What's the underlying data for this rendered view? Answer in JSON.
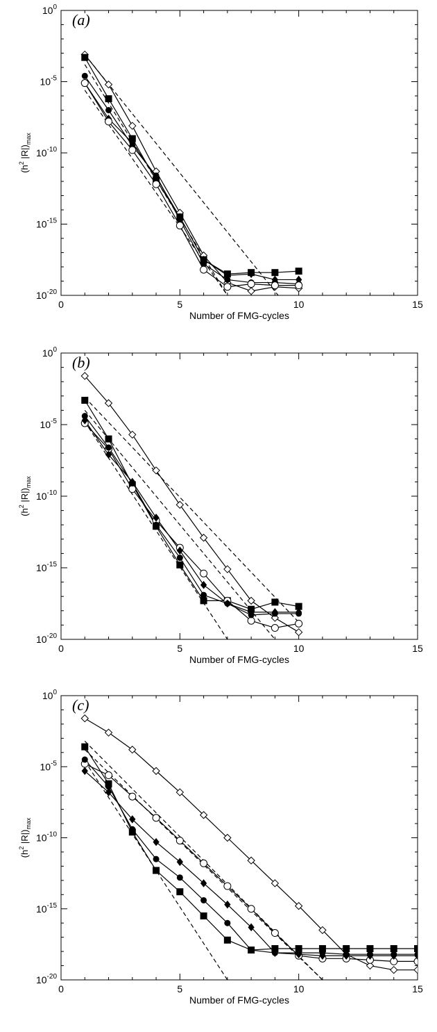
{
  "chart_data": [
    {
      "type": "line",
      "panel_label": "(a)",
      "xlabel": "Number of FMG-cycles",
      "ylabel": {
        "base": "(h",
        "sup": "2",
        "mid": " |R|)",
        "sub": "max"
      },
      "xlim": [
        0,
        15
      ],
      "ylim_exp": [
        -20,
        0
      ],
      "log_y": true,
      "x_ticks": [
        "0",
        "5",
        "10",
        "15"
      ],
      "y_ticks": [
        {
          "base": "10",
          "exp": "0"
        },
        {
          "base": "10",
          "exp": "-5"
        },
        {
          "base": "10",
          "exp": "-10"
        },
        {
          "base": "10",
          "exp": "-15"
        },
        {
          "base": "10",
          "exp": "-20"
        }
      ],
      "series": [
        {
          "marker": "open-diamond",
          "x": [
            1,
            2,
            3,
            4,
            5,
            6,
            7,
            8,
            9,
            10
          ],
          "log10_y": [
            -3.1,
            -5.2,
            -8.1,
            -11.3,
            -14.2,
            -17.2,
            -19.1,
            -19.7,
            -19.4,
            -19.5
          ]
        },
        {
          "marker": "filled-square",
          "x": [
            1,
            2,
            3,
            4,
            5,
            6,
            7,
            8,
            9,
            10
          ],
          "log10_y": [
            -3.3,
            -6.2,
            -9.0,
            -11.9,
            -14.5,
            -17.5,
            -18.5,
            -18.4,
            -18.4,
            -18.3
          ]
        },
        {
          "marker": "filled-diamond",
          "x": [
            1,
            2,
            3,
            4,
            5,
            6,
            7,
            8,
            9,
            10
          ],
          "log10_y": [
            -5.1,
            -7.6,
            -9.3,
            -11.7,
            -14.5,
            -17.5,
            -18.6,
            -18.5,
            -18.9,
            -18.9
          ]
        },
        {
          "marker": "filled-circle",
          "x": [
            1,
            2,
            3,
            4,
            5,
            6,
            7,
            8,
            9,
            10
          ],
          "log10_y": [
            -4.6,
            -7.0,
            -9.5,
            -11.6,
            -14.7,
            -17.8,
            -18.9,
            -19.1,
            -19.1,
            -19.2
          ]
        },
        {
          "marker": "open-circle",
          "x": [
            1,
            2,
            3,
            4,
            5,
            6,
            7,
            8,
            9,
            10
          ],
          "log10_y": [
            -5.1,
            -7.8,
            -9.8,
            -12.2,
            -15.1,
            -18.2,
            -19.4,
            -19.2,
            -19.3,
            -19.3
          ]
        }
      ],
      "reference_lines": [
        {
          "style": "dashed",
          "x": [
            1,
            10
          ],
          "log10_y": [
            -3.1,
            -21.8
          ]
        },
        {
          "style": "dashed",
          "x": [
            1,
            7
          ],
          "log10_y": [
            -3.8,
            -20
          ]
        },
        {
          "style": "dashed",
          "x": [
            1,
            7
          ],
          "log10_y": [
            -5.6,
            -20
          ]
        }
      ]
    },
    {
      "type": "line",
      "panel_label": "(b)",
      "xlabel": "Number of FMG-cycles",
      "ylabel": {
        "base": "(h",
        "sup": "2",
        "mid": " |R|)",
        "sub": "max"
      },
      "xlim": [
        0,
        15
      ],
      "ylim_exp": [
        -20,
        0
      ],
      "log_y": true,
      "x_ticks": [
        "0",
        "5",
        "10",
        "15"
      ],
      "y_ticks": [
        {
          "base": "10",
          "exp": "0"
        },
        {
          "base": "10",
          "exp": "-5"
        },
        {
          "base": "10",
          "exp": "-10"
        },
        {
          "base": "10",
          "exp": "-15"
        },
        {
          "base": "10",
          "exp": "-20"
        }
      ],
      "series": [
        {
          "marker": "open-diamond",
          "x": [
            1,
            2,
            3,
            4,
            5,
            6,
            7,
            8,
            9,
            10
          ],
          "log10_y": [
            -1.6,
            -3.5,
            -5.7,
            -8.2,
            -10.6,
            -12.9,
            -15.1,
            -17.3,
            -18.5,
            -19.5
          ]
        },
        {
          "marker": "filled-square",
          "x": [
            1,
            2,
            3,
            4,
            5,
            6,
            7,
            8,
            9,
            10
          ],
          "log10_y": [
            -3.3,
            -6.0,
            -9.2,
            -12.1,
            -14.8,
            -17.3,
            -17.3,
            -17.9,
            -17.4,
            -17.7
          ]
        },
        {
          "marker": "open-circle",
          "x": [
            1,
            2,
            3,
            4,
            5,
            6,
            7,
            8,
            9,
            10
          ],
          "log10_y": [
            -4.9,
            -6.7,
            -9.5,
            -11.7,
            -13.6,
            -15.4,
            -17.3,
            -18.7,
            -19.2,
            -18.9
          ]
        },
        {
          "marker": "filled-diamond",
          "x": [
            1,
            2,
            3,
            4,
            5,
            6,
            7,
            8,
            9,
            10
          ],
          "log10_y": [
            -4.7,
            -7.1,
            -9.0,
            -11.5,
            -13.8,
            -16.2,
            -17.5,
            -18.1,
            -18.1,
            -18.1
          ]
        },
        {
          "marker": "filled-circle",
          "x": [
            1,
            2,
            3,
            4,
            5,
            6,
            7,
            8,
            9,
            10
          ],
          "log10_y": [
            -4.4,
            -6.6,
            -9.1,
            -12.0,
            -14.3,
            -16.9,
            -17.5,
            -18.3,
            -18.2,
            -18.2
          ]
        }
      ],
      "reference_lines": [
        {
          "style": "dashed",
          "x": [
            1,
            10
          ],
          "log10_y": [
            -3.1,
            -18.8
          ]
        },
        {
          "style": "dashed",
          "x": [
            1,
            10
          ],
          "log10_y": [
            -4.0,
            -22.0
          ]
        },
        {
          "style": "dashed",
          "x": [
            1,
            7
          ],
          "log10_y": [
            -4.8,
            -20
          ]
        }
      ]
    },
    {
      "type": "line",
      "panel_label": "(c)",
      "xlabel": "Number of FMG-cycles",
      "ylabel": {
        "base": "(h",
        "sup": "2",
        "mid": " |R|)",
        "sub": "max"
      },
      "xlim": [
        0,
        15
      ],
      "ylim_exp": [
        -20,
        0
      ],
      "log_y": true,
      "x_ticks": [
        "0",
        "5",
        "10",
        "15"
      ],
      "y_ticks": [
        {
          "base": "10",
          "exp": "0"
        },
        {
          "base": "10",
          "exp": "-5"
        },
        {
          "base": "10",
          "exp": "-10"
        },
        {
          "base": "10",
          "exp": "-15"
        },
        {
          "base": "10",
          "exp": "-20"
        }
      ],
      "series": [
        {
          "marker": "open-diamond",
          "x": [
            1,
            2,
            3,
            4,
            5,
            6,
            7,
            8,
            9,
            10,
            11,
            12,
            13,
            14,
            15
          ],
          "log10_y": [
            -1.6,
            -2.6,
            -3.8,
            -5.3,
            -6.8,
            -8.4,
            -10.0,
            -11.6,
            -13.2,
            -14.8,
            -16.5,
            -18.2,
            -19.0,
            -19.3,
            -19.3
          ]
        },
        {
          "marker": "open-circle",
          "x": [
            1,
            2,
            3,
            4,
            5,
            6,
            7,
            8,
            9,
            10,
            11,
            12,
            13,
            14,
            15
          ],
          "log10_y": [
            -4.8,
            -5.6,
            -7.1,
            -8.6,
            -10.2,
            -11.8,
            -13.4,
            -15.0,
            -16.7,
            -18.3,
            -18.5,
            -18.5,
            -18.6,
            -18.7,
            -18.7
          ]
        },
        {
          "marker": "filled-square",
          "x": [
            1,
            2,
            3,
            4,
            5,
            6,
            7,
            8,
            9,
            10,
            11,
            12,
            13,
            14,
            15
          ],
          "log10_y": [
            -3.6,
            -6.2,
            -9.6,
            -12.3,
            -13.8,
            -15.5,
            -17.2,
            -17.9,
            -17.8,
            -17.8,
            -17.8,
            -17.8,
            -17.8,
            -17.8,
            -17.8
          ]
        },
        {
          "marker": "filled-diamond",
          "x": [
            1,
            2,
            3,
            4,
            5,
            6,
            7,
            8,
            9,
            10,
            11,
            12,
            13,
            14,
            15
          ],
          "log10_y": [
            -5.3,
            -6.8,
            -8.7,
            -10.3,
            -11.7,
            -13.2,
            -14.7,
            -16.3,
            -18.1,
            -18.2,
            -18.3,
            -18.3,
            -18.3,
            -18.3,
            -18.3
          ]
        },
        {
          "marker": "filled-circle",
          "x": [
            1,
            2,
            3,
            4,
            5,
            6,
            7,
            8,
            9,
            10,
            11,
            12,
            13,
            14,
            15
          ],
          "log10_y": [
            -4.5,
            -6.4,
            -9.4,
            -11.5,
            -12.8,
            -14.4,
            -16.0,
            -17.9,
            -18.1,
            -18.1,
            -18.1,
            -18.2,
            -18.2,
            -18.2,
            -18.2
          ]
        }
      ],
      "reference_lines": [
        {
          "style": "dashed",
          "x": [
            1,
            11
          ],
          "log10_y": [
            -3.2,
            -20
          ]
        },
        {
          "style": "dashed",
          "x": [
            1,
            11
          ],
          "log10_y": [
            -3.8,
            -20
          ]
        },
        {
          "style": "dashed",
          "x": [
            1,
            7
          ],
          "log10_y": [
            -4.6,
            -20
          ]
        }
      ]
    }
  ]
}
